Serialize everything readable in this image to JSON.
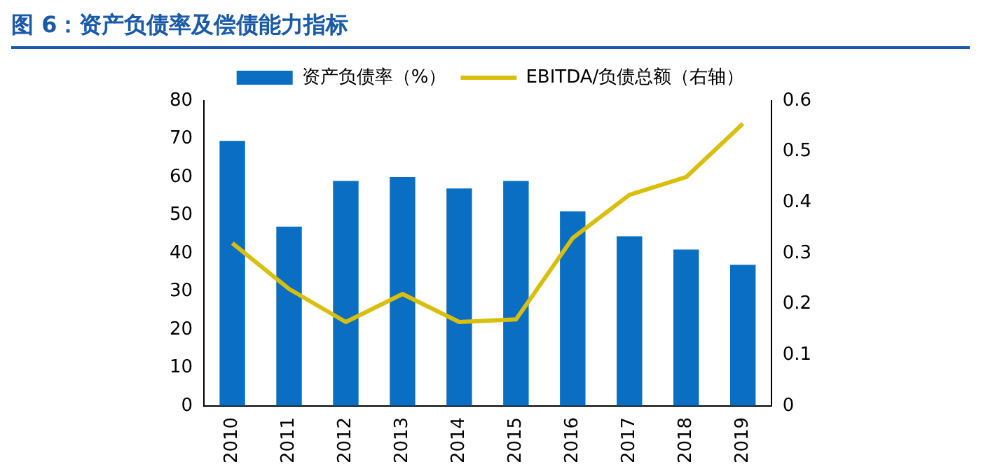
{
  "chart_data": {
    "type": "bar",
    "title": "图 6：资产负债率及偿债能力指标",
    "categories": [
      "2010",
      "2011",
      "2012",
      "2013",
      "2014",
      "2015",
      "2016",
      "2017",
      "2018",
      "2019"
    ],
    "series": [
      {
        "name": "资产负债率（%）",
        "color": "#0a6fc2",
        "values": [
          69.5,
          47,
          59,
          60,
          57,
          59,
          51,
          44.5,
          41,
          37
        ]
      },
      {
        "name": "EBITDA/负债总额（右轴）",
        "type": "line",
        "axis": "y2",
        "color": "#d9bf0c",
        "marker": "none",
        "values": [
          0.32,
          0.23,
          0.165,
          0.22,
          0.165,
          0.17,
          0.33,
          0.415,
          0.45,
          0.555
        ]
      }
    ],
    "ylim": [
      0,
      80
    ],
    "yticks": [
      0,
      10,
      20,
      30,
      40,
      50,
      60,
      70,
      80
    ],
    "y2lim": [
      0,
      0.6
    ],
    "y2ticks": [
      0,
      0.1,
      0.2,
      0.3,
      0.4,
      0.5,
      0.6
    ],
    "grid": false,
    "legend": "top"
  }
}
